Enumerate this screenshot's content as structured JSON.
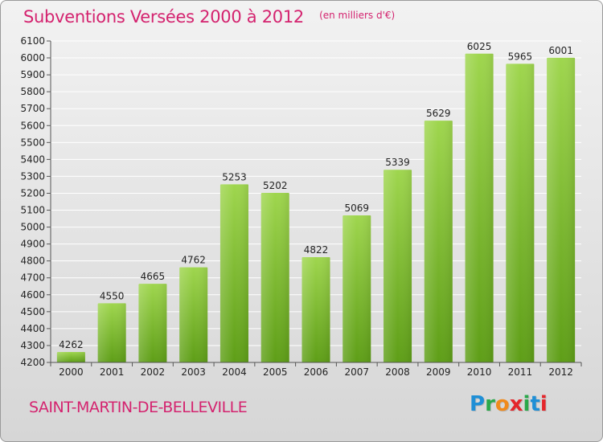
{
  "header": {
    "title": "Subventions Versées 2000 à 2012",
    "subtitle": "(en milliers d'€)"
  },
  "footer": {
    "commune": "SAINT-MARTIN-DE-BELLEVILLE",
    "brand_letters": [
      "P",
      "r",
      "o",
      "x",
      "i",
      "t",
      "i"
    ],
    "brand_colors": [
      "#1f8fd6",
      "#2aa84a",
      "#f08a1c",
      "#e4262b",
      "#2aa84a",
      "#1f8fd6",
      "#e4262b"
    ]
  },
  "colors": {
    "title": "#d4236f",
    "bar_top": "#9fd64e",
    "bar_bottom": "#5e9e17",
    "grid": "#ffffff"
  },
  "chart_data": {
    "type": "bar",
    "categories": [
      "2000",
      "2001",
      "2002",
      "2003",
      "2004",
      "2005",
      "2006",
      "2007",
      "2008",
      "2009",
      "2010",
      "2011",
      "2012"
    ],
    "values": [
      4262,
      4550,
      4665,
      4762,
      5253,
      5202,
      4822,
      5069,
      5339,
      5629,
      6025,
      5965,
      6001
    ],
    "data_labels": [
      "4262",
      "4550",
      "4665",
      "4762",
      "5253",
      "5202",
      "4822",
      "5069",
      "5339",
      "5629",
      "6025",
      "5965",
      "6001"
    ],
    "ylim": [
      4200,
      6100
    ],
    "ytick_step": 100,
    "grid": true,
    "xlabel": "",
    "ylabel": ""
  }
}
